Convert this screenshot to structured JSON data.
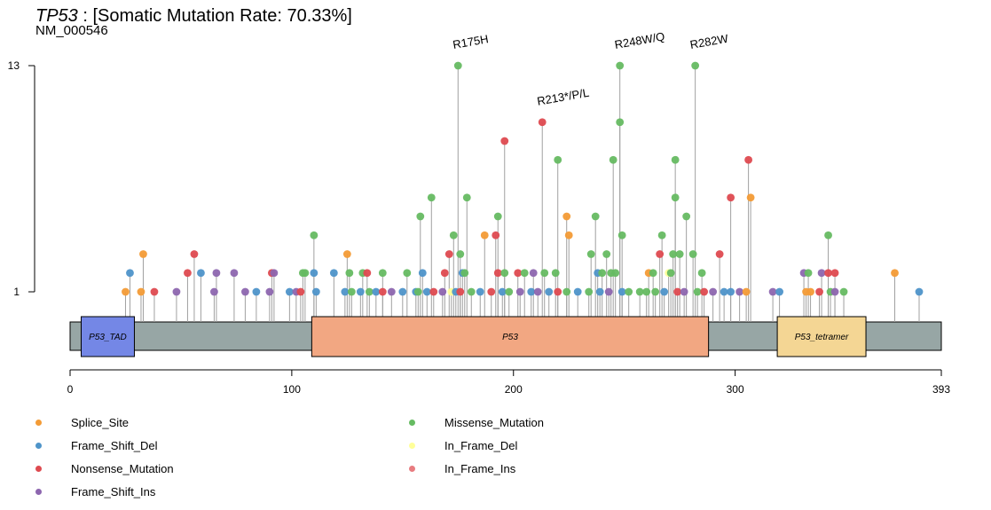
{
  "title": {
    "gene": "TP53",
    "text": " : [Somatic Mutation Rate: 70.33%]",
    "transcript": "NM_000546"
  },
  "colors": {
    "Splice_Site": "#F39B36",
    "Frame_Shift_Del": "#4E94C9",
    "Nonsense_Mutation": "#DE4A50",
    "Frame_Shift_Ins": "#8D66AF",
    "Missense_Mutation": "#66BB62",
    "In_Frame_Del": "#FFFF99",
    "In_Frame_Ins": "#E87C80",
    "stem": "#A0A0A0",
    "protein_bar": "#97A6A5",
    "domain_P53_TAD": "#7487E6",
    "domain_P53": "#F2A782",
    "domain_P53_tetramer": "#F4D694"
  },
  "chart_data": {
    "type": "lollipop",
    "protein_length": 393,
    "x_ticks": [
      0,
      100,
      200,
      300,
      393
    ],
    "y_ticks": [
      1,
      13
    ],
    "domains": [
      {
        "name": "P53_TAD",
        "start": 5,
        "end": 29
      },
      {
        "name": "P53",
        "start": 109,
        "end": 288
      },
      {
        "name": "P53_tetramer",
        "start": 319,
        "end": 359
      }
    ],
    "hotspot_labels": [
      {
        "label": "R175H",
        "position": 175,
        "count": 13
      },
      {
        "label": "R213*/P/L",
        "position": 213,
        "count": 10
      },
      {
        "label": "R248W/Q",
        "position": 248,
        "count": 13
      },
      {
        "label": "R282W",
        "position": 282,
        "count": 13
      }
    ],
    "mutations": [
      {
        "pos": 175,
        "count": 13,
        "type": "Missense_Mutation"
      },
      {
        "pos": 248,
        "count": 13,
        "type": "Missense_Mutation"
      },
      {
        "pos": 282,
        "count": 13,
        "type": "Missense_Mutation"
      },
      {
        "pos": 213,
        "count": 10,
        "type": "Nonsense_Mutation"
      },
      {
        "pos": 248,
        "count": 10,
        "type": "Missense_Mutation"
      },
      {
        "pos": 196,
        "count": 9,
        "type": "Nonsense_Mutation"
      },
      {
        "pos": 220,
        "count": 8,
        "type": "Missense_Mutation"
      },
      {
        "pos": 245,
        "count": 8,
        "type": "Missense_Mutation"
      },
      {
        "pos": 273,
        "count": 8,
        "type": "Missense_Mutation"
      },
      {
        "pos": 306,
        "count": 8,
        "type": "Nonsense_Mutation"
      },
      {
        "pos": 163,
        "count": 6,
        "type": "Missense_Mutation"
      },
      {
        "pos": 179,
        "count": 6,
        "type": "Missense_Mutation"
      },
      {
        "pos": 273,
        "count": 6,
        "type": "Missense_Mutation"
      },
      {
        "pos": 298,
        "count": 6,
        "type": "Nonsense_Mutation"
      },
      {
        "pos": 307,
        "count": 6,
        "type": "Splice_Site"
      },
      {
        "pos": 158,
        "count": 5,
        "type": "Missense_Mutation"
      },
      {
        "pos": 193,
        "count": 5,
        "type": "Missense_Mutation"
      },
      {
        "pos": 224,
        "count": 5,
        "type": "Splice_Site"
      },
      {
        "pos": 237,
        "count": 5,
        "type": "Missense_Mutation"
      },
      {
        "pos": 278,
        "count": 5,
        "type": "Missense_Mutation"
      },
      {
        "pos": 110,
        "count": 4,
        "type": "Missense_Mutation"
      },
      {
        "pos": 173,
        "count": 4,
        "type": "Missense_Mutation"
      },
      {
        "pos": 187,
        "count": 4,
        "type": "Splice_Site"
      },
      {
        "pos": 192,
        "count": 4,
        "type": "Nonsense_Mutation"
      },
      {
        "pos": 225,
        "count": 4,
        "type": "Splice_Site"
      },
      {
        "pos": 249,
        "count": 4,
        "type": "Missense_Mutation"
      },
      {
        "pos": 267,
        "count": 4,
        "type": "Missense_Mutation"
      },
      {
        "pos": 342,
        "count": 4,
        "type": "Missense_Mutation"
      },
      {
        "pos": 33,
        "count": 3,
        "type": "Splice_Site"
      },
      {
        "pos": 56,
        "count": 3,
        "type": "Nonsense_Mutation"
      },
      {
        "pos": 125,
        "count": 3,
        "type": "Splice_Site"
      },
      {
        "pos": 171,
        "count": 3,
        "type": "Nonsense_Mutation"
      },
      {
        "pos": 176,
        "count": 3,
        "type": "Missense_Mutation"
      },
      {
        "pos": 235,
        "count": 3,
        "type": "Missense_Mutation"
      },
      {
        "pos": 242,
        "count": 3,
        "type": "Missense_Mutation"
      },
      {
        "pos": 266,
        "count": 3,
        "type": "Nonsense_Mutation"
      },
      {
        "pos": 272,
        "count": 3,
        "type": "Missense_Mutation"
      },
      {
        "pos": 275,
        "count": 3,
        "type": "Missense_Mutation"
      },
      {
        "pos": 281,
        "count": 3,
        "type": "Missense_Mutation"
      },
      {
        "pos": 293,
        "count": 3,
        "type": "Nonsense_Mutation"
      },
      {
        "pos": 27,
        "count": 2,
        "type": "Frame_Shift_Del"
      },
      {
        "pos": 53,
        "count": 2,
        "type": "Nonsense_Mutation"
      },
      {
        "pos": 59,
        "count": 2,
        "type": "Frame_Shift_Del"
      },
      {
        "pos": 66,
        "count": 2,
        "type": "Frame_Shift_Ins"
      },
      {
        "pos": 74,
        "count": 2,
        "type": "Frame_Shift_Ins"
      },
      {
        "pos": 91,
        "count": 2,
        "type": "Nonsense_Mutation"
      },
      {
        "pos": 92,
        "count": 2,
        "type": "Frame_Shift_Ins"
      },
      {
        "pos": 105,
        "count": 2,
        "type": "Missense_Mutation"
      },
      {
        "pos": 106,
        "count": 2,
        "type": "Missense_Mutation"
      },
      {
        "pos": 110,
        "count": 2,
        "type": "Frame_Shift_Del"
      },
      {
        "pos": 119,
        "count": 2,
        "type": "Frame_Shift_Del"
      },
      {
        "pos": 126,
        "count": 2,
        "type": "Missense_Mutation"
      },
      {
        "pos": 132,
        "count": 2,
        "type": "Missense_Mutation"
      },
      {
        "pos": 134,
        "count": 2,
        "type": "Nonsense_Mutation"
      },
      {
        "pos": 141,
        "count": 2,
        "type": "Missense_Mutation"
      },
      {
        "pos": 152,
        "count": 2,
        "type": "Missense_Mutation"
      },
      {
        "pos": 159,
        "count": 2,
        "type": "Frame_Shift_Del"
      },
      {
        "pos": 169,
        "count": 2,
        "type": "Nonsense_Mutation"
      },
      {
        "pos": 177,
        "count": 2,
        "type": "Frame_Shift_Del"
      },
      {
        "pos": 178,
        "count": 2,
        "type": "Missense_Mutation"
      },
      {
        "pos": 193,
        "count": 2,
        "type": "Nonsense_Mutation"
      },
      {
        "pos": 196,
        "count": 2,
        "type": "Missense_Mutation"
      },
      {
        "pos": 202,
        "count": 2,
        "type": "Nonsense_Mutation"
      },
      {
        "pos": 205,
        "count": 2,
        "type": "Missense_Mutation"
      },
      {
        "pos": 209,
        "count": 2,
        "type": "Frame_Shift_Ins"
      },
      {
        "pos": 214,
        "count": 2,
        "type": "Missense_Mutation"
      },
      {
        "pos": 219,
        "count": 2,
        "type": "Missense_Mutation"
      },
      {
        "pos": 238,
        "count": 2,
        "type": "Frame_Shift_Del"
      },
      {
        "pos": 240,
        "count": 2,
        "type": "Missense_Mutation"
      },
      {
        "pos": 244,
        "count": 2,
        "type": "Missense_Mutation"
      },
      {
        "pos": 246,
        "count": 2,
        "type": "Missense_Mutation"
      },
      {
        "pos": 261,
        "count": 2,
        "type": "Splice_Site"
      },
      {
        "pos": 263,
        "count": 2,
        "type": "Missense_Mutation"
      },
      {
        "pos": 270,
        "count": 2,
        "type": "In_Frame_Del"
      },
      {
        "pos": 271,
        "count": 2,
        "type": "Missense_Mutation"
      },
      {
        "pos": 285,
        "count": 2,
        "type": "Missense_Mutation"
      },
      {
        "pos": 331,
        "count": 2,
        "type": "Frame_Shift_Ins"
      },
      {
        "pos": 333,
        "count": 2,
        "type": "Missense_Mutation"
      },
      {
        "pos": 339,
        "count": 2,
        "type": "Frame_Shift_Ins"
      },
      {
        "pos": 342,
        "count": 2,
        "type": "Nonsense_Mutation"
      },
      {
        "pos": 345,
        "count": 2,
        "type": "Nonsense_Mutation"
      },
      {
        "pos": 372,
        "count": 2,
        "type": "Splice_Site"
      },
      {
        "pos": 25,
        "count": 1,
        "type": "Splice_Site"
      },
      {
        "pos": 32,
        "count": 1,
        "type": "Splice_Site"
      },
      {
        "pos": 38,
        "count": 1,
        "type": "Nonsense_Mutation"
      },
      {
        "pos": 48,
        "count": 1,
        "type": "Frame_Shift_Ins"
      },
      {
        "pos": 65,
        "count": 1,
        "type": "Frame_Shift_Ins"
      },
      {
        "pos": 79,
        "count": 1,
        "type": "Frame_Shift_Ins"
      },
      {
        "pos": 84,
        "count": 1,
        "type": "Frame_Shift_Del"
      },
      {
        "pos": 90,
        "count": 1,
        "type": "Frame_Shift_Ins"
      },
      {
        "pos": 99,
        "count": 1,
        "type": "Frame_Shift_Del"
      },
      {
        "pos": 102,
        "count": 1,
        "type": "Frame_Shift_Ins"
      },
      {
        "pos": 104,
        "count": 1,
        "type": "Nonsense_Mutation"
      },
      {
        "pos": 111,
        "count": 1,
        "type": "Frame_Shift_Del"
      },
      {
        "pos": 124,
        "count": 1,
        "type": "Frame_Shift_Del"
      },
      {
        "pos": 127,
        "count": 1,
        "type": "Missense_Mutation"
      },
      {
        "pos": 131,
        "count": 1,
        "type": "Frame_Shift_Del"
      },
      {
        "pos": 135,
        "count": 1,
        "type": "Missense_Mutation"
      },
      {
        "pos": 138,
        "count": 1,
        "type": "Frame_Shift_Del"
      },
      {
        "pos": 141,
        "count": 1,
        "type": "Nonsense_Mutation"
      },
      {
        "pos": 145,
        "count": 1,
        "type": "Frame_Shift_Ins"
      },
      {
        "pos": 150,
        "count": 1,
        "type": "Frame_Shift_Del"
      },
      {
        "pos": 156,
        "count": 1,
        "type": "Frame_Shift_Del"
      },
      {
        "pos": 157,
        "count": 1,
        "type": "Missense_Mutation"
      },
      {
        "pos": 161,
        "count": 1,
        "type": "Frame_Shift_Del"
      },
      {
        "pos": 164,
        "count": 1,
        "type": "Nonsense_Mutation"
      },
      {
        "pos": 168,
        "count": 1,
        "type": "Frame_Shift_Ins"
      },
      {
        "pos": 172,
        "count": 1,
        "type": "In_Frame_Del"
      },
      {
        "pos": 174,
        "count": 1,
        "type": "Frame_Shift_Del"
      },
      {
        "pos": 176,
        "count": 1,
        "type": "Nonsense_Mutation"
      },
      {
        "pos": 181,
        "count": 1,
        "type": "Missense_Mutation"
      },
      {
        "pos": 185,
        "count": 1,
        "type": "Frame_Shift_Del"
      },
      {
        "pos": 190,
        "count": 1,
        "type": "Nonsense_Mutation"
      },
      {
        "pos": 195,
        "count": 1,
        "type": "Frame_Shift_Del"
      },
      {
        "pos": 198,
        "count": 1,
        "type": "Missense_Mutation"
      },
      {
        "pos": 203,
        "count": 1,
        "type": "Frame_Shift_Ins"
      },
      {
        "pos": 208,
        "count": 1,
        "type": "Frame_Shift_Del"
      },
      {
        "pos": 211,
        "count": 1,
        "type": "Frame_Shift_Ins"
      },
      {
        "pos": 216,
        "count": 1,
        "type": "Frame_Shift_Del"
      },
      {
        "pos": 220,
        "count": 1,
        "type": "Nonsense_Mutation"
      },
      {
        "pos": 224,
        "count": 1,
        "type": "Missense_Mutation"
      },
      {
        "pos": 229,
        "count": 1,
        "type": "Frame_Shift_Del"
      },
      {
        "pos": 234,
        "count": 1,
        "type": "Missense_Mutation"
      },
      {
        "pos": 239,
        "count": 1,
        "type": "Frame_Shift_Del"
      },
      {
        "pos": 243,
        "count": 1,
        "type": "Frame_Shift_Ins"
      },
      {
        "pos": 249,
        "count": 1,
        "type": "Frame_Shift_Del"
      },
      {
        "pos": 252,
        "count": 1,
        "type": "Missense_Mutation"
      },
      {
        "pos": 257,
        "count": 1,
        "type": "Missense_Mutation"
      },
      {
        "pos": 260,
        "count": 1,
        "type": "Missense_Mutation"
      },
      {
        "pos": 264,
        "count": 1,
        "type": "Missense_Mutation"
      },
      {
        "pos": 268,
        "count": 1,
        "type": "Frame_Shift_Del"
      },
      {
        "pos": 274,
        "count": 1,
        "type": "Nonsense_Mutation"
      },
      {
        "pos": 277,
        "count": 1,
        "type": "Frame_Shift_Ins"
      },
      {
        "pos": 283,
        "count": 1,
        "type": "Missense_Mutation"
      },
      {
        "pos": 286,
        "count": 1,
        "type": "Nonsense_Mutation"
      },
      {
        "pos": 290,
        "count": 1,
        "type": "Frame_Shift_Ins"
      },
      {
        "pos": 295,
        "count": 1,
        "type": "Frame_Shift_Del"
      },
      {
        "pos": 298,
        "count": 1,
        "type": "Frame_Shift_Del"
      },
      {
        "pos": 302,
        "count": 1,
        "type": "Frame_Shift_Ins"
      },
      {
        "pos": 305,
        "count": 1,
        "type": "Splice_Site"
      },
      {
        "pos": 317,
        "count": 1,
        "type": "Frame_Shift_Ins"
      },
      {
        "pos": 320,
        "count": 1,
        "type": "Frame_Shift_Del"
      },
      {
        "pos": 332,
        "count": 1,
        "type": "Splice_Site"
      },
      {
        "pos": 334,
        "count": 1,
        "type": "Splice_Site"
      },
      {
        "pos": 338,
        "count": 1,
        "type": "Nonsense_Mutation"
      },
      {
        "pos": 343,
        "count": 1,
        "type": "Missense_Mutation"
      },
      {
        "pos": 345,
        "count": 1,
        "type": "Frame_Shift_Ins"
      },
      {
        "pos": 349,
        "count": 1,
        "type": "Missense_Mutation"
      },
      {
        "pos": 383,
        "count": 1,
        "type": "Frame_Shift_Del"
      }
    ]
  },
  "legend": [
    {
      "label": "Splice_Site",
      "type": "Splice_Site"
    },
    {
      "label": "Frame_Shift_Del",
      "type": "Frame_Shift_Del"
    },
    {
      "label": "Nonsense_Mutation",
      "type": "Nonsense_Mutation"
    },
    {
      "label": "Frame_Shift_Ins",
      "type": "Frame_Shift_Ins"
    },
    {
      "label": "Missense_Mutation",
      "type": "Missense_Mutation"
    },
    {
      "label": "In_Frame_Del",
      "type": "In_Frame_Del"
    },
    {
      "label": "In_Frame_Ins",
      "type": "In_Frame_Ins"
    }
  ]
}
